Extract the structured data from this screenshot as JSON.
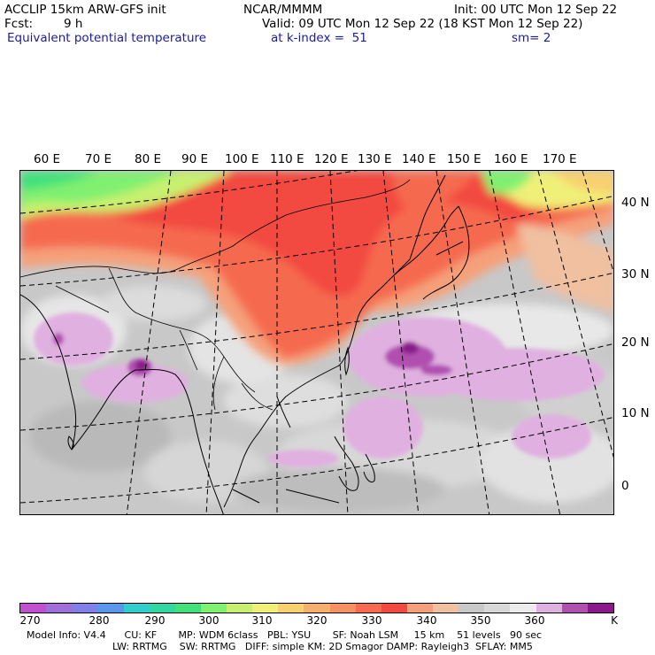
{
  "header": {
    "model_title": "ACCLIP 15km ARW-GFS init",
    "org": "NCAR/MMMM",
    "init": "Init: 00 UTC Mon 12 Sep 22",
    "fcst_label": "Fcst:",
    "fcst_value": "9 h",
    "valid": "Valid: 09 UTC Mon 12 Sep 22 (18 KST Mon 12 Sep 22)",
    "field_name": "Equivalent potential temperature",
    "level": "at k-index =  51",
    "smoothing": "sm= 2"
  },
  "map": {
    "lon_labels": [
      "60 E",
      "70 E",
      "80 E",
      "90 E",
      "100 E",
      "110 E",
      "120 E",
      "130 E",
      "140 E",
      "150 E",
      "160 E",
      "170 E"
    ],
    "lat_labels": [
      "40 N",
      "30 N",
      "20 N",
      "10 N",
      "0"
    ]
  },
  "colorbar": {
    "colors": [
      "#c050d0",
      "#9f6ed8",
      "#8080e8",
      "#5a96ea",
      "#33cccc",
      "#33d6a0",
      "#40e07a",
      "#80f070",
      "#c8f070",
      "#f0f078",
      "#f8d070",
      "#f5b070",
      "#f59060",
      "#f56a50",
      "#f24a40",
      "#f5a07a",
      "#f0c0a0",
      "#c8c8c8",
      "#d8d8d8",
      "#ececec",
      "#e0b0e0",
      "#b050b0",
      "#8a1a8a"
    ],
    "labels": [
      "270",
      "280",
      "290",
      "300",
      "310",
      "320",
      "330",
      "340",
      "350",
      "360",
      "K"
    ]
  },
  "footer": {
    "line1": "Model Info: V4.4      CU: KF       MP: WDM 6class   PBL: YSU       SF: Noah LSM     15 km    51 levels   90 sec",
    "line2": "LW: RRTMG    SW: RRTMG   DIFF: simple KM: 2D Smagor DAMP: Rayleigh3  SFLAY: MM5"
  }
}
